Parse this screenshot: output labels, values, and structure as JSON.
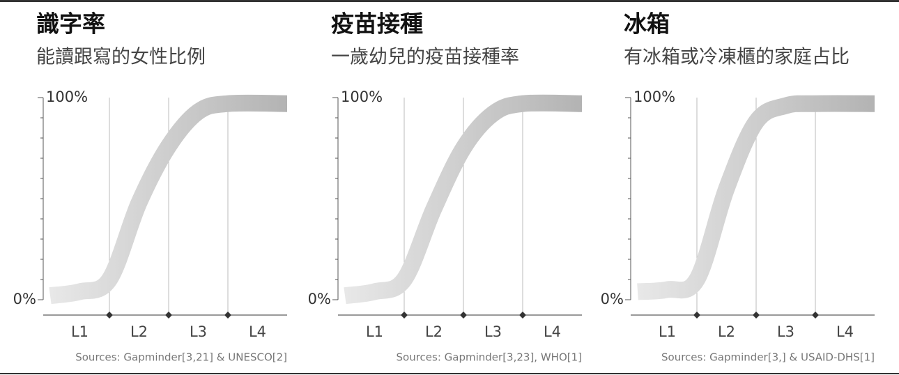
{
  "chart_data": [
    {
      "type": "curve",
      "title": "識字率",
      "subtitle": "能讀跟寫的女性比例",
      "categories": [
        "L1",
        "L2",
        "L3",
        "L4"
      ],
      "x": [
        0,
        0.5,
        1,
        1.5,
        2,
        2.5,
        3,
        4
      ],
      "values": [
        2,
        4,
        10,
        48,
        76,
        93,
        97,
        97
      ],
      "xlim": [
        0,
        4
      ],
      "ylim": [
        0,
        100
      ],
      "yticks": [
        {
          "value": 0,
          "label": "0%"
        },
        {
          "value": 100,
          "label": "100%"
        }
      ],
      "minor_yticks": [
        10,
        20,
        30,
        40,
        50,
        60,
        70,
        80,
        90
      ],
      "source": "Sources: Gapminder[3,21] & UNESCO[2]"
    },
    {
      "type": "curve",
      "title": "疫苗接種",
      "subtitle": "一歲幼兒的疫苗接種率",
      "categories": [
        "L1",
        "L2",
        "L3",
        "L4"
      ],
      "x": [
        0,
        0.5,
        1,
        1.5,
        2,
        2.5,
        3,
        4
      ],
      "values": [
        2,
        4,
        10,
        45,
        75,
        92,
        97,
        97
      ],
      "xlim": [
        0,
        4
      ],
      "ylim": [
        0,
        100
      ],
      "yticks": [
        {
          "value": 0,
          "label": "0%"
        },
        {
          "value": 100,
          "label": "100%"
        }
      ],
      "minor_yticks": [
        10,
        20,
        30,
        40,
        50,
        60,
        70,
        80,
        90
      ],
      "source": "Sources: Gapminder[3,23], WHO[1]"
    },
    {
      "type": "curve",
      "title": "冰箱",
      "subtitle": "有冰箱或冷凍櫃的家庭占比",
      "categories": [
        "L1",
        "L2",
        "L3",
        "L4"
      ],
      "x": [
        0,
        0.5,
        1,
        1.5,
        2,
        2.5,
        3,
        4
      ],
      "values": [
        4,
        5,
        10,
        55,
        88,
        96,
        97,
        97
      ],
      "xlim": [
        0,
        4
      ],
      "ylim": [
        0,
        100
      ],
      "yticks": [
        {
          "value": 0,
          "label": "0%"
        },
        {
          "value": 100,
          "label": "100%"
        }
      ],
      "minor_yticks": [
        10,
        20,
        30,
        40,
        50,
        60,
        70,
        80,
        90
      ],
      "source": "Sources: Gapminder[3,] & USAID-DHS[1]"
    }
  ]
}
